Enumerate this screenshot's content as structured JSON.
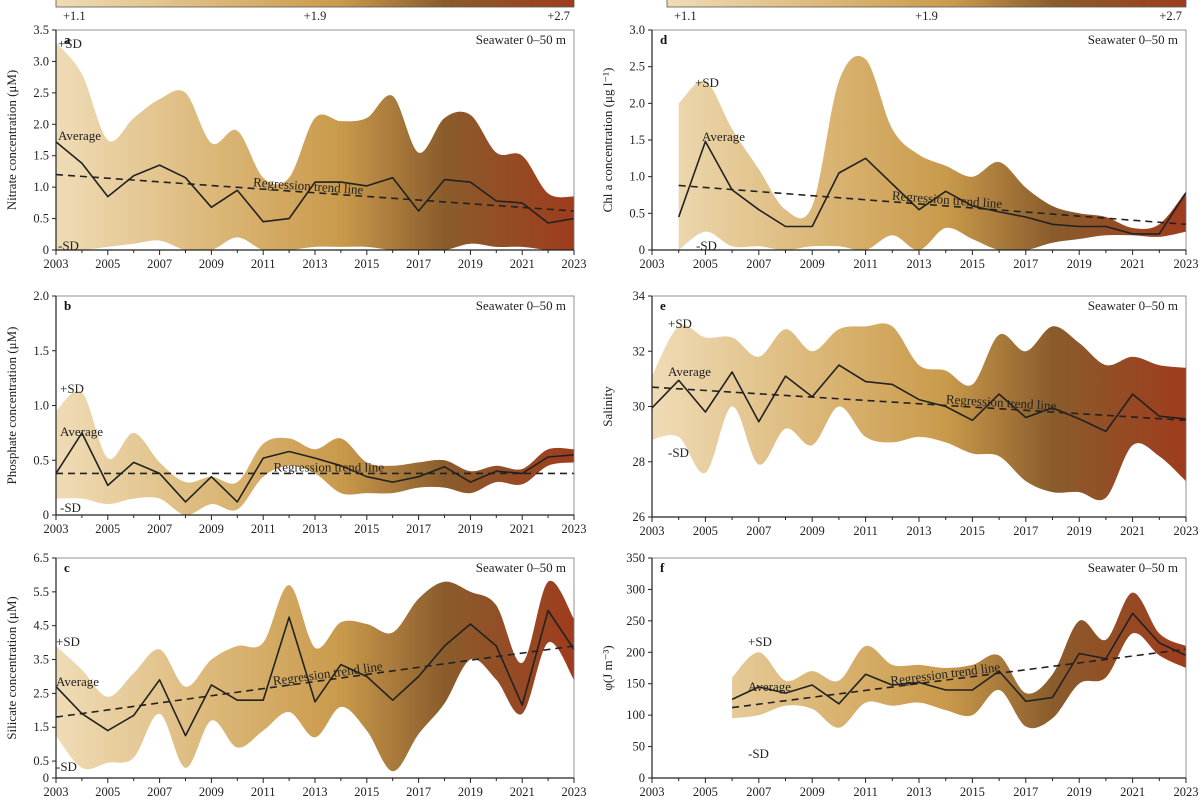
{
  "colorbars": [
    {
      "labels": [
        "+1.1",
        "+1.9",
        "+2.7"
      ]
    },
    {
      "labels": [
        "+1.1",
        "+1.9",
        "+2.7"
      ]
    }
  ],
  "colors": {
    "gradient_start": "#efdcb6",
    "gradient_mid1": "#dcb879",
    "gradient_mid2": "#c99a4b",
    "gradient_mid3": "#8a5c2c",
    "gradient_end": "#9f3c1e",
    "average_line": "#222222",
    "trend_line": "#222222"
  },
  "series_labels": {
    "plus_sd": "+SD",
    "average": "Average",
    "minus_sd": "-SD",
    "trend": "Regression trend line"
  },
  "chart_data": [
    {
      "type": "area",
      "panel": "a",
      "subtitle": "Seawater 0–50 m",
      "ylabel": "Nitrate concentration (μM)",
      "ylim": [
        0,
        3.5
      ],
      "yticks": [
        "0",
        "0.5",
        "1.0",
        "1.5",
        "2.0",
        "2.5",
        "3.0",
        "3.5"
      ],
      "xlim": [
        2003,
        2023
      ],
      "xticks": [
        "2003",
        "2005",
        "2007",
        "2009",
        "2011",
        "2013",
        "2015",
        "2017",
        "2019",
        "2021",
        "2023"
      ],
      "x": [
        2003,
        2004,
        2005,
        2006,
        2007,
        2008,
        2009,
        2010,
        2011,
        2012,
        2013,
        2014,
        2015,
        2016,
        2017,
        2018,
        2019,
        2020,
        2021,
        2022,
        2023
      ],
      "upper": [
        3.3,
        2.8,
        1.75,
        2.1,
        2.4,
        2.5,
        1.7,
        1.9,
        1.15,
        1.15,
        2.1,
        2.05,
        2.1,
        2.45,
        1.55,
        2.1,
        2.15,
        1.55,
        1.5,
        0.9,
        0.85
      ],
      "average": [
        1.72,
        1.38,
        0.85,
        1.18,
        1.35,
        1.15,
        0.68,
        0.95,
        0.45,
        0.5,
        1.08,
        1.08,
        1.02,
        1.15,
        0.62,
        1.12,
        1.08,
        0.78,
        0.75,
        0.43,
        0.5
      ],
      "lower": [
        0.0,
        0.0,
        0.05,
        0.1,
        0.15,
        0.0,
        0.0,
        0.2,
        0.0,
        0.0,
        0.05,
        0.05,
        0.05,
        0.0,
        0.0,
        0.0,
        0.1,
        0.05,
        0.05,
        0.0,
        0.0
      ],
      "trend": [
        1.2,
        0.62
      ],
      "show_sd_labels": true
    },
    {
      "type": "area",
      "panel": "b",
      "subtitle": "Seawater 0–50 m",
      "ylabel": "Phosphate concentration (μM)",
      "ylim": [
        0,
        2.0
      ],
      "yticks": [
        "0",
        "0.5",
        "1.0",
        "1.5",
        "2.0"
      ],
      "xlim": [
        2003,
        2023
      ],
      "xticks": [
        "2003",
        "2005",
        "2007",
        "2009",
        "2011",
        "2013",
        "2015",
        "2017",
        "2019",
        "2021",
        "2023"
      ],
      "x": [
        2003,
        2004,
        2005,
        2006,
        2007,
        2008,
        2009,
        2010,
        2011,
        2012,
        2013,
        2014,
        2015,
        2016,
        2017,
        2018,
        2019,
        2020,
        2021,
        2022,
        2023
      ],
      "upper": [
        0.95,
        1.12,
        0.52,
        0.75,
        0.48,
        0.3,
        0.35,
        0.3,
        0.65,
        0.7,
        0.6,
        0.7,
        0.48,
        0.45,
        0.48,
        0.5,
        0.4,
        0.45,
        0.42,
        0.6,
        0.6
      ],
      "average": [
        0.38,
        0.75,
        0.27,
        0.48,
        0.38,
        0.12,
        0.35,
        0.12,
        0.52,
        0.58,
        0.52,
        0.45,
        0.35,
        0.3,
        0.35,
        0.44,
        0.3,
        0.4,
        0.38,
        0.53,
        0.55
      ],
      "lower": [
        0.15,
        0.15,
        0.1,
        0.15,
        0.15,
        0.0,
        0.1,
        0.05,
        0.35,
        0.45,
        0.38,
        0.2,
        0.2,
        0.2,
        0.25,
        0.25,
        0.2,
        0.3,
        0.28,
        0.45,
        0.48
      ],
      "trend": [
        0.38,
        0.38
      ],
      "show_sd_labels": true
    },
    {
      "type": "area",
      "panel": "c",
      "subtitle": "Seawater 0–50 m",
      "ylabel": "Silicate concentration (μM)",
      "ylim": [
        0,
        6.5
      ],
      "yticks": [
        "0",
        "0.5",
        "1.5",
        "2.5",
        "3.5",
        "4.5",
        "5.5",
        "6.5"
      ],
      "xlim": [
        2003,
        2023
      ],
      "xticks": [
        "2003",
        "2005",
        "2007",
        "2009",
        "2011",
        "2013",
        "2015",
        "2017",
        "2019",
        "2021",
        "2023"
      ],
      "x": [
        2003,
        2004,
        2005,
        2006,
        2007,
        2008,
        2009,
        2010,
        2011,
        2012,
        2013,
        2014,
        2015,
        2016,
        2017,
        2018,
        2019,
        2020,
        2021,
        2022,
        2023
      ],
      "upper": [
        3.9,
        3.2,
        2.4,
        3.1,
        3.8,
        2.7,
        3.5,
        3.9,
        4.0,
        5.7,
        3.85,
        4.6,
        4.55,
        4.3,
        5.3,
        5.8,
        5.5,
        5.1,
        3.4,
        5.8,
        4.7
      ],
      "average": [
        2.7,
        1.9,
        1.4,
        1.85,
        2.9,
        1.25,
        2.75,
        2.3,
        2.3,
        4.75,
        2.25,
        3.35,
        3.0,
        2.3,
        3.0,
        3.9,
        4.55,
        3.9,
        2.15,
        4.95,
        3.8
      ],
      "lower": [
        1.25,
        0.3,
        0.45,
        0.6,
        1.9,
        0.3,
        1.7,
        0.9,
        1.4,
        1.95,
        1.2,
        2.1,
        1.4,
        0.2,
        1.3,
        2.2,
        3.5,
        2.9,
        1.9,
        4.0,
        2.9
      ],
      "trend": [
        1.8,
        3.9
      ],
      "show_sd_labels": true
    },
    {
      "type": "area",
      "panel": "d",
      "subtitle": "Seawater 0–50 m",
      "ylabel": "Chl a concentration (μg l⁻¹)",
      "ylim": [
        0,
        3.0
      ],
      "yticks": [
        "0",
        "0.5",
        "1.0",
        "1.5",
        "2.0",
        "2.5",
        "3.0"
      ],
      "xlim": [
        2003,
        2023
      ],
      "xticks": [
        "2003",
        "2005",
        "2007",
        "2009",
        "2011",
        "2013",
        "2015",
        "2017",
        "2019",
        "2021",
        "2023"
      ],
      "x": [
        2004,
        2005,
        2006,
        2007,
        2008,
        2009,
        2010,
        2011,
        2012,
        2013,
        2014,
        2015,
        2016,
        2017,
        2018,
        2019,
        2020,
        2021,
        2022,
        2023
      ],
      "upper": [
        2.0,
        2.3,
        1.65,
        1.1,
        0.55,
        0.6,
        2.3,
        2.6,
        1.65,
        1.3,
        1.15,
        1.0,
        1.2,
        0.85,
        0.6,
        0.5,
        0.45,
        0.3,
        0.35,
        0.8
      ],
      "average": [
        0.45,
        1.48,
        0.82,
        0.55,
        0.32,
        0.32,
        1.05,
        1.25,
        0.9,
        0.55,
        0.8,
        0.6,
        0.52,
        0.45,
        0.35,
        0.32,
        0.32,
        0.22,
        0.22,
        0.78
      ],
      "lower": [
        0.0,
        0.25,
        0.05,
        0.05,
        0.0,
        0.05,
        0.05,
        0.0,
        0.2,
        0.0,
        0.3,
        0.15,
        0.0,
        0.0,
        0.1,
        0.15,
        0.2,
        0.2,
        0.18,
        0.25
      ],
      "trend": [
        0.88,
        0.35
      ],
      "show_sd_labels": true
    },
    {
      "type": "area",
      "panel": "e",
      "subtitle": "Seawater 0–50 m",
      "ylabel": "Salinity",
      "ylim": [
        26,
        34
      ],
      "yticks": [
        "26",
        "28",
        "30",
        "32",
        "34"
      ],
      "xlim": [
        2003,
        2023
      ],
      "xticks": [
        "2003",
        "2005",
        "2007",
        "2009",
        "2011",
        "2013",
        "2015",
        "2017",
        "2019",
        "2021",
        "2023"
      ],
      "x": [
        2003,
        2004,
        2005,
        2006,
        2007,
        2008,
        2009,
        2010,
        2011,
        2012,
        2013,
        2014,
        2015,
        2016,
        2017,
        2018,
        2019,
        2020,
        2021,
        2022,
        2023
      ],
      "upper": [
        31.1,
        32.9,
        32.5,
        32.5,
        31.8,
        32.8,
        32.0,
        32.8,
        32.9,
        32.9,
        31.5,
        31.3,
        30.8,
        32.6,
        32.0,
        32.9,
        32.3,
        31.5,
        31.8,
        31.5,
        31.4
      ],
      "average": [
        29.95,
        30.95,
        29.8,
        31.25,
        29.45,
        31.1,
        30.35,
        31.5,
        30.9,
        30.8,
        30.25,
        30.0,
        29.5,
        30.45,
        29.6,
        29.95,
        29.55,
        29.1,
        30.45,
        29.65,
        29.55
      ],
      "lower": [
        28.8,
        28.9,
        27.6,
        30.0,
        27.9,
        29.2,
        28.6,
        30.0,
        28.9,
        28.7,
        28.9,
        28.7,
        28.3,
        28.2,
        27.3,
        26.9,
        26.9,
        26.7,
        28.6,
        28.2,
        27.3
      ],
      "trend": [
        30.7,
        29.5
      ],
      "show_sd_labels": true
    },
    {
      "type": "area",
      "panel": "f",
      "subtitle": "Seawater 0–50 m",
      "ylabel": "φ(J m⁻³)",
      "ylim": [
        0,
        350
      ],
      "yticks": [
        "0",
        "50",
        "100",
        "150",
        "200",
        "250",
        "300",
        "350"
      ],
      "xlim": [
        2003,
        2023
      ],
      "xticks": [
        "2003",
        "2005",
        "2007",
        "2009",
        "2011",
        "2013",
        "2015",
        "2017",
        "2019",
        "2021",
        "2023"
      ],
      "x": [
        2006,
        2007,
        2008,
        2009,
        2010,
        2011,
        2012,
        2013,
        2014,
        2015,
        2016,
        2017,
        2018,
        2019,
        2020,
        2021,
        2022,
        2023
      ],
      "upper": [
        160,
        200,
        155,
        170,
        155,
        210,
        180,
        180,
        175,
        180,
        195,
        135,
        165,
        250,
        220,
        295,
        230,
        210
      ],
      "average": [
        125,
        145,
        135,
        148,
        118,
        165,
        148,
        152,
        140,
        140,
        170,
        122,
        128,
        198,
        190,
        262,
        215,
        195
      ],
      "lower": [
        95,
        100,
        115,
        110,
        80,
        120,
        115,
        120,
        108,
        100,
        140,
        82,
        95,
        150,
        160,
        230,
        195,
        175
      ],
      "trend": [
        112,
        205
      ],
      "show_sd_labels": true
    }
  ]
}
